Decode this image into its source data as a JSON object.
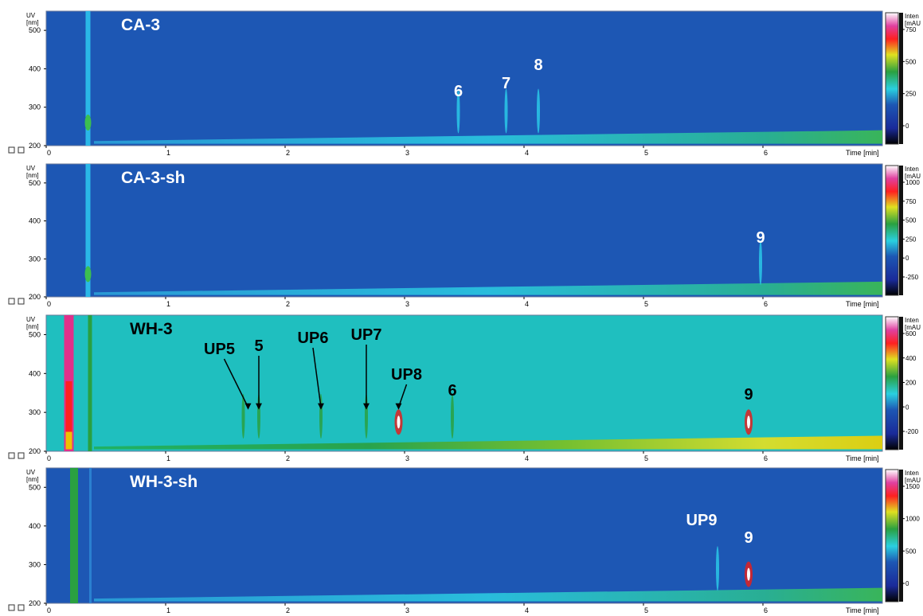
{
  "chart_data": [
    {
      "type": "heatmap",
      "title": "CA-3",
      "ylabel": "UV\n[nm]",
      "xlabel": "Time [min]",
      "xlim": [
        0,
        7
      ],
      "ylim": [
        200,
        550
      ],
      "xticks": [
        "0",
        "1",
        "2",
        "3",
        "4",
        "5",
        "6"
      ],
      "yticks": [
        "200",
        "300",
        "400",
        "500"
      ],
      "colorbar_label": "Inten\n[mAU",
      "colorbar_ticks": [
        "0",
        "250",
        "500",
        "750"
      ],
      "background": "#1d57b4",
      "solvent_front_x": 0.35,
      "peaks": [
        {
          "label": "6",
          "x": 3.45
        },
        {
          "label": "7",
          "x": 3.85
        },
        {
          "label": "8",
          "x": 4.12
        }
      ]
    },
    {
      "type": "heatmap",
      "title": "CA-3-sh",
      "ylabel": "UV\n[nm]",
      "xlabel": "Time [min]",
      "xlim": [
        0,
        7
      ],
      "ylim": [
        200,
        550
      ],
      "xticks": [
        "0",
        "1",
        "2",
        "3",
        "4",
        "5",
        "6"
      ],
      "yticks": [
        "200",
        "300",
        "400",
        "500"
      ],
      "colorbar_label": "Inten\n[mAU",
      "colorbar_ticks": [
        "-250",
        "0",
        "250",
        "500",
        "750",
        "1000"
      ],
      "background": "#1d57b4",
      "solvent_front_x": 0.35,
      "peaks": [
        {
          "label": "9",
          "x": 5.98
        }
      ]
    },
    {
      "type": "heatmap",
      "title": "WH-3",
      "ylabel": "UV\n[nm]",
      "xlabel": "Time [min]",
      "xlim": [
        0,
        7
      ],
      "ylim": [
        200,
        550
      ],
      "xticks": [
        "0",
        "1",
        "2",
        "3",
        "4",
        "5",
        "6"
      ],
      "yticks": [
        "200",
        "300",
        "400",
        "500"
      ],
      "colorbar_label": "Inten\n[mAU",
      "colorbar_ticks": [
        "-200",
        "0",
        "200",
        "400",
        "600"
      ],
      "background": "#1fbfbf",
      "solvent_front_x": 0.2,
      "peaks": [
        {
          "label": "UP5",
          "x": 1.65
        },
        {
          "label": "5",
          "x": 1.78
        },
        {
          "label": "UP6",
          "x": 2.3
        },
        {
          "label": "UP7",
          "x": 2.68
        },
        {
          "label": "UP8",
          "x": 2.95
        },
        {
          "label": "6",
          "x": 3.4
        },
        {
          "label": "9",
          "x": 5.88
        }
      ]
    },
    {
      "type": "heatmap",
      "title": "WH-3-sh",
      "ylabel": "UV\n[nm]",
      "xlabel": "Time [min]",
      "xlim": [
        0,
        7
      ],
      "ylim": [
        200,
        550
      ],
      "xticks": [
        "0",
        "1",
        "2",
        "3",
        "4",
        "5",
        "6"
      ],
      "yticks": [
        "200",
        "300",
        "400",
        "500"
      ],
      "colorbar_label": "Inten\n[mAU",
      "colorbar_ticks": [
        "0",
        "500",
        "1000",
        "1500"
      ],
      "background": "#1d57b4",
      "solvent_front_x": 0.2,
      "peaks": [
        {
          "label": "UP9",
          "x": 5.62
        },
        {
          "label": "9",
          "x": 5.88
        }
      ]
    }
  ]
}
